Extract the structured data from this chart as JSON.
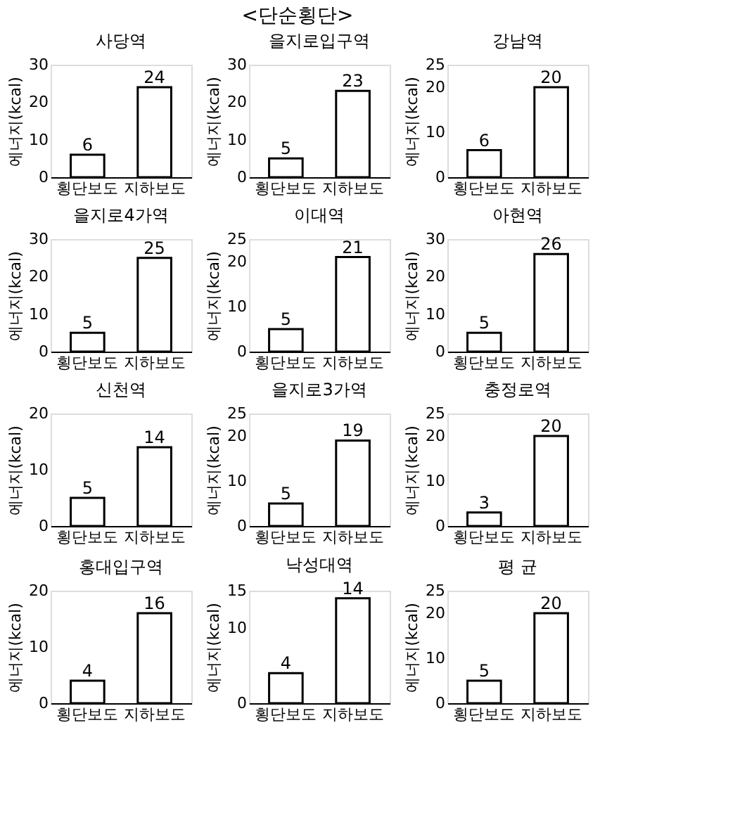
{
  "chart_data": [
    {
      "type": "other",
      "title": "<단순횡단>"
    },
    {
      "type": "bar",
      "title": "사당역",
      "ylabel": "에너지(kcal)",
      "categories": [
        "횡단보도",
        "지하보도"
      ],
      "values": [
        6,
        24
      ],
      "color": "#ffffff",
      "ylim": [
        0,
        30
      ],
      "yticks": [
        0,
        10,
        20,
        30
      ],
      "data_labels": true
    },
    {
      "type": "bar",
      "title": "을지로입구역",
      "ylabel": "에너지(kcal)",
      "categories": [
        "횡단보도",
        "지하보도"
      ],
      "values": [
        5,
        23
      ],
      "color": "#ffffff",
      "ylim": [
        0,
        30
      ],
      "yticks": [
        0,
        10,
        20,
        30
      ],
      "data_labels": true
    },
    {
      "type": "bar",
      "title": "강남역",
      "ylabel": "에너지(kcal)",
      "categories": [
        "횡단보도",
        "지하보도"
      ],
      "values": [
        6,
        20
      ],
      "color": "#ffffff",
      "ylim": [
        0,
        25
      ],
      "yticks": [
        0,
        10,
        20,
        25
      ],
      "data_labels": true
    },
    {
      "type": "bar",
      "title": "을지로4가역",
      "ylabel": "에너지(kcal)",
      "categories": [
        "횡단보도",
        "지하보도"
      ],
      "values": [
        5,
        25
      ],
      "color": "#ffffff",
      "ylim": [
        0,
        30
      ],
      "yticks": [
        0,
        10,
        20,
        30
      ],
      "data_labels": true
    },
    {
      "type": "bar",
      "title": "이대역",
      "ylabel": "에너지(kcal)",
      "categories": [
        "횡단보도",
        "지하보도"
      ],
      "values": [
        5,
        21
      ],
      "color": "#ffffff",
      "ylim": [
        0,
        25
      ],
      "yticks": [
        0,
        10,
        20,
        25
      ],
      "data_labels": true
    },
    {
      "type": "bar",
      "title": "아현역",
      "ylabel": "에너지(kcal)",
      "categories": [
        "횡단보도",
        "지하보도"
      ],
      "values": [
        5,
        26
      ],
      "color": "#ffffff",
      "ylim": [
        0,
        30
      ],
      "yticks": [
        0,
        10,
        20,
        30
      ],
      "data_labels": true
    },
    {
      "type": "bar",
      "title": "신천역",
      "ylabel": "에너지(kcal)",
      "categories": [
        "횡단보도",
        "지하보도"
      ],
      "values": [
        5,
        14
      ],
      "color": "#ffffff",
      "ylim": [
        0,
        20
      ],
      "yticks": [
        0,
        10,
        20
      ],
      "data_labels": true
    },
    {
      "type": "bar",
      "title": "을지로3가역",
      "ylabel": "에너지(kcal)",
      "categories": [
        "횡단보도",
        "지하보도"
      ],
      "values": [
        5,
        19
      ],
      "color": "#ffffff",
      "ylim": [
        0,
        25
      ],
      "yticks": [
        0,
        10,
        20,
        25
      ],
      "data_labels": true
    },
    {
      "type": "bar",
      "title": "충정로역",
      "ylabel": "에너지(kcal)",
      "categories": [
        "횡단보도",
        "지하보도"
      ],
      "values": [
        3,
        20
      ],
      "color": "#ffffff",
      "ylim": [
        0,
        25
      ],
      "yticks": [
        0,
        10,
        20,
        25
      ],
      "data_labels": true
    },
    {
      "type": "bar",
      "title": "홍대입구역",
      "ylabel": "에너지(kcal)",
      "categories": [
        "횡단보도",
        "지하보도"
      ],
      "values": [
        4,
        16
      ],
      "color": "#ffffff",
      "ylim": [
        0,
        20
      ],
      "yticks": [
        0,
        10,
        20
      ],
      "data_labels": true
    },
    {
      "type": "bar",
      "title": "낙성대역",
      "ylabel": "에너지(kcal)",
      "categories": [
        "횡단보도",
        "지하보도"
      ],
      "values": [
        4,
        14
      ],
      "color": "#ffffff",
      "ylim": [
        0,
        15
      ],
      "yticks": [
        0,
        10,
        15
      ],
      "data_labels": true
    },
    {
      "type": "bar",
      "title": "평 균",
      "ylabel": "에너지(kcal)",
      "categories": [
        "횡단보도",
        "지하보도"
      ],
      "values": [
        5,
        20
      ],
      "color": "#ffffff",
      "ylim": [
        0,
        25
      ],
      "yticks": [
        0,
        10,
        20,
        25
      ],
      "data_labels": true
    }
  ]
}
